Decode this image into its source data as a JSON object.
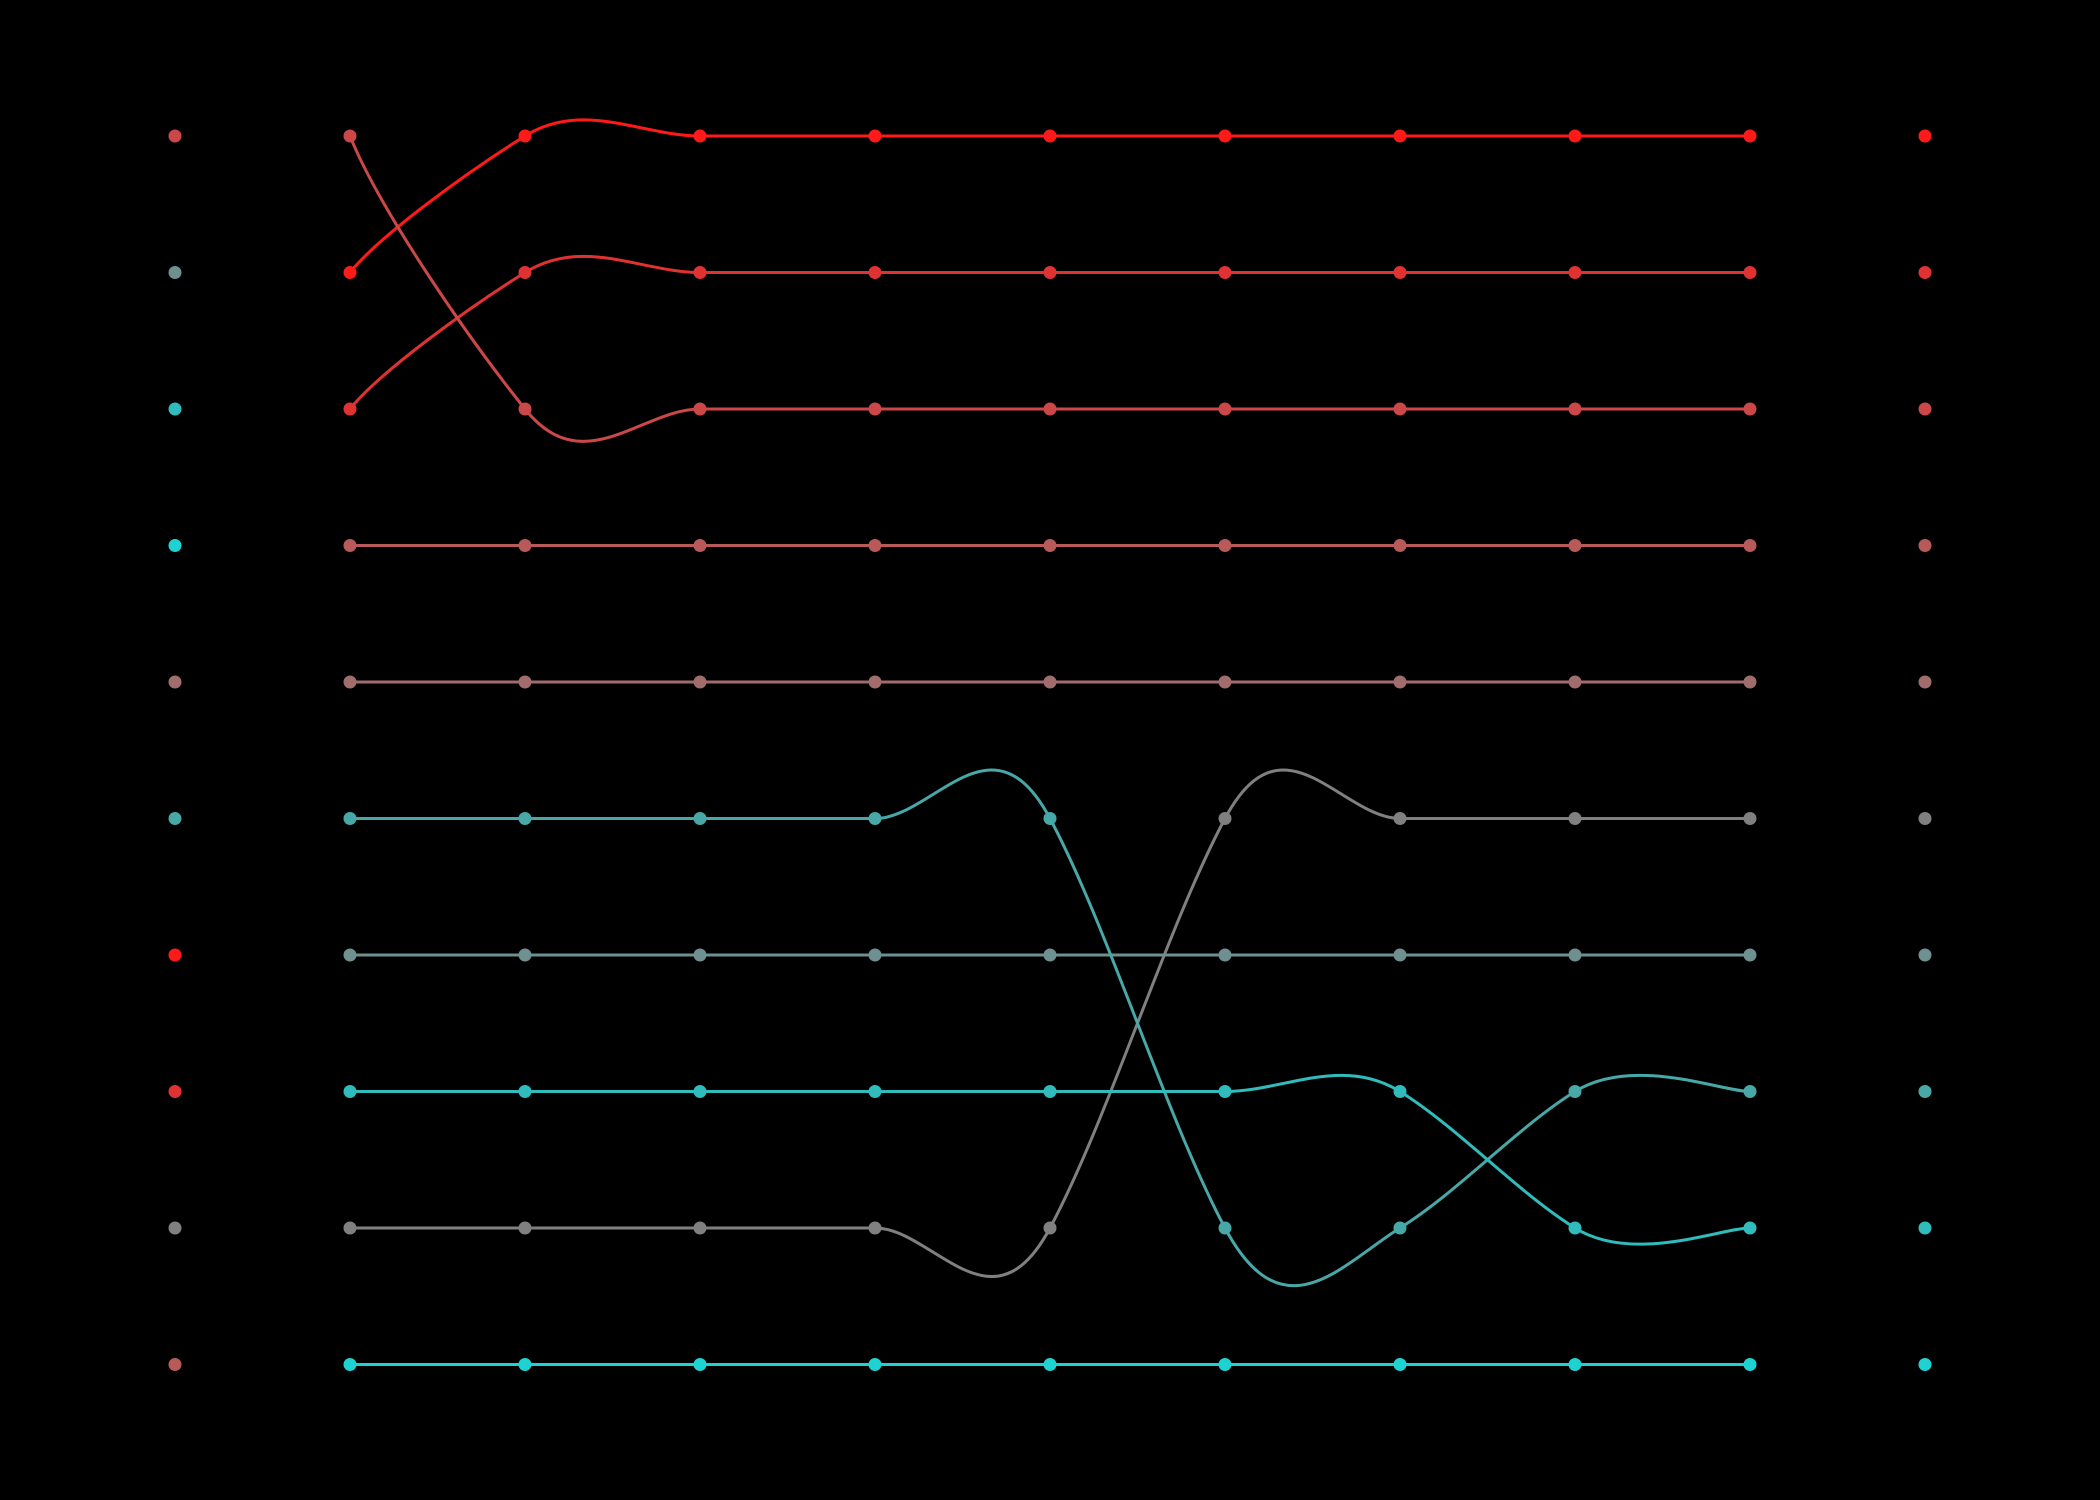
{
  "chart_data": {
    "type": "line",
    "title": "",
    "xlabel": "",
    "ylabel": "",
    "x": [
      1,
      2,
      3,
      4,
      5,
      6,
      7,
      8,
      9
    ],
    "ranks": [
      1,
      2,
      3,
      4,
      5,
      6,
      7,
      8,
      9,
      10
    ],
    "grid": false,
    "legend": "none",
    "series": [
      {
        "color": "#ff1a1a",
        "values": [
          2,
          1,
          1,
          1,
          1,
          1,
          1,
          1,
          1
        ]
      },
      {
        "color": "#e03232",
        "values": [
          3,
          2,
          2,
          2,
          2,
          2,
          2,
          2,
          2
        ]
      },
      {
        "color": "#cc4848",
        "values": [
          1,
          3,
          3,
          3,
          3,
          3,
          3,
          3,
          3
        ]
      },
      {
        "color": "#b85a5a",
        "values": [
          4,
          4,
          4,
          4,
          4,
          4,
          4,
          4,
          4
        ]
      },
      {
        "color": "#a06c6c",
        "values": [
          5,
          5,
          5,
          5,
          5,
          5,
          5,
          5,
          5
        ]
      },
      {
        "color": "#808080",
        "values": [
          9,
          9,
          9,
          9,
          9,
          6,
          6,
          6,
          6
        ]
      },
      {
        "color": "#6e9090",
        "values": [
          7,
          7,
          7,
          7,
          7,
          7,
          7,
          7,
          7
        ]
      },
      {
        "color": "#48a8a8",
        "values": [
          6,
          6,
          6,
          6,
          6,
          9,
          9,
          8,
          8
        ]
      },
      {
        "color": "#30bcbc",
        "values": [
          8,
          8,
          8,
          8,
          8,
          8,
          8,
          9,
          9
        ]
      },
      {
        "color": "#1ed2d2",
        "values": [
          10,
          10,
          10,
          10,
          10,
          10,
          10,
          10,
          10
        ]
      }
    ],
    "left_markers": [
      "#cc4848",
      "#6e9090",
      "#30bcbc",
      "#1ed2d2",
      "#a06c6c",
      "#48a8a8",
      "#ff1a1a",
      "#e03232",
      "#808080",
      "#b85a5a"
    ],
    "right_markers": [
      "#ff1a1a",
      "#e03232",
      "#cc4848",
      "#b85a5a",
      "#a06c6c",
      "#808080",
      "#6e9090",
      "#48a8a8",
      "#30bcbc",
      "#1ed2d2"
    ]
  }
}
